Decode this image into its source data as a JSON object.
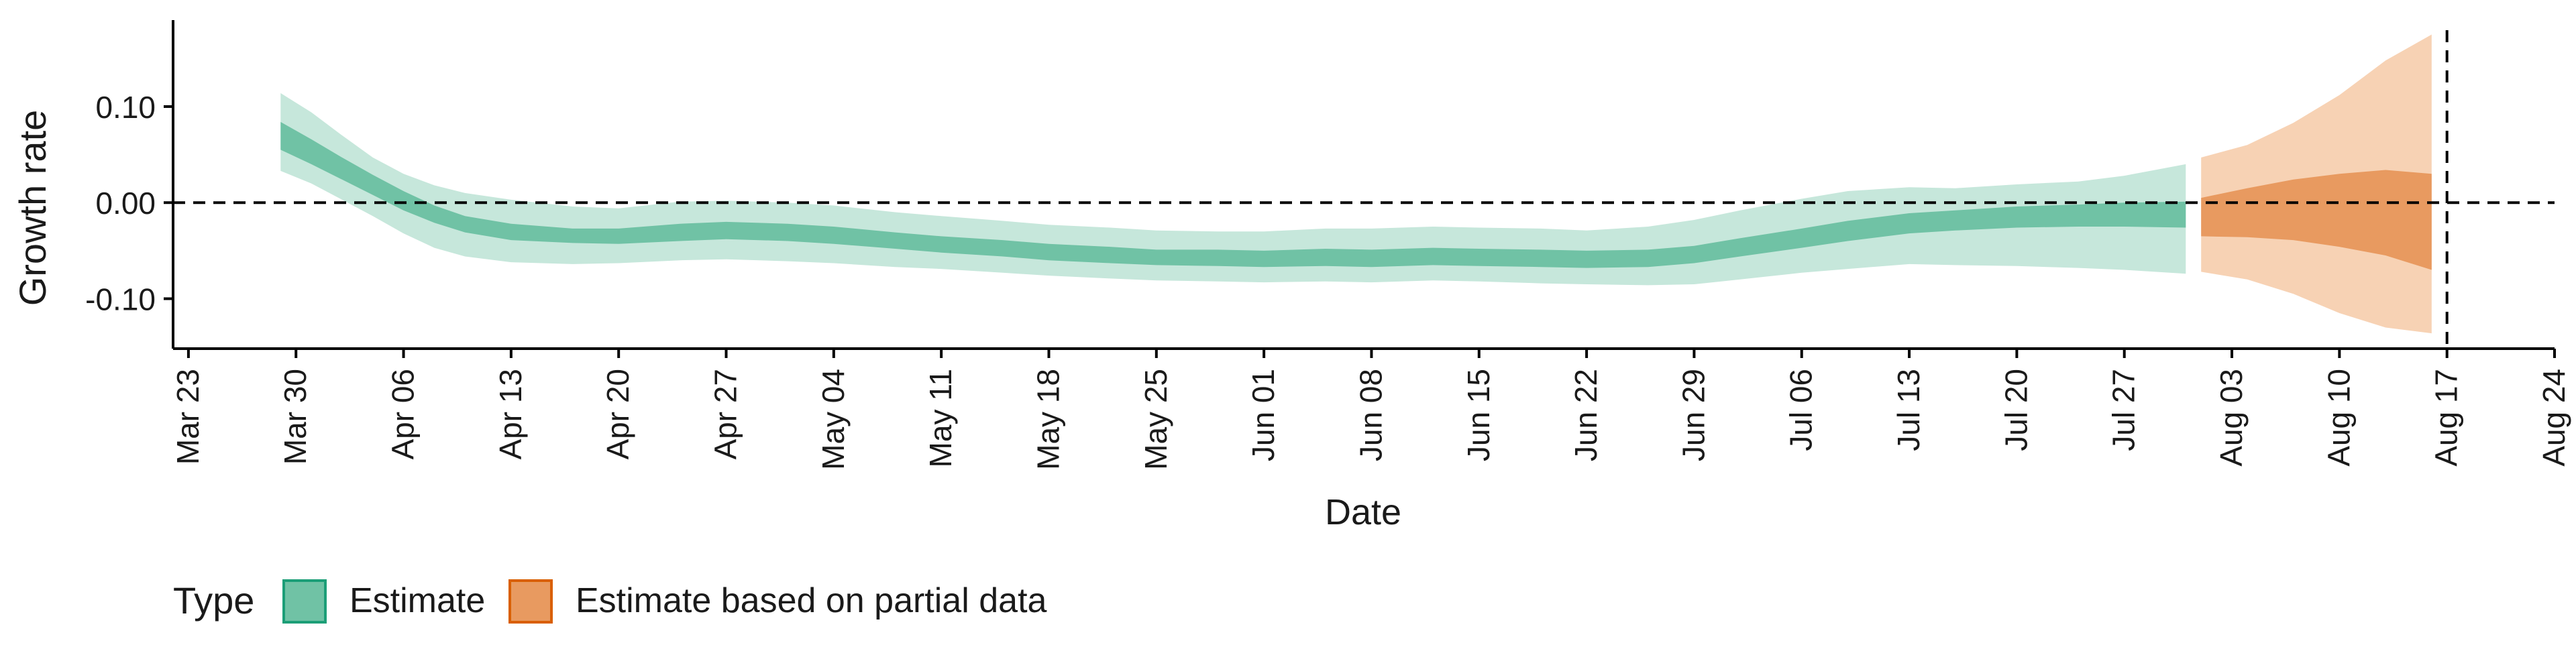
{
  "chart_data": {
    "type": "area",
    "title": "",
    "xlabel": "Date",
    "ylabel": "Growth rate",
    "x_ticks": [
      "Mar 23",
      "Mar 30",
      "Apr 06",
      "Apr 13",
      "Apr 20",
      "Apr 27",
      "May 04",
      "May 11",
      "May 18",
      "May 25",
      "Jun 01",
      "Jun 08",
      "Jun 15",
      "Jun 22",
      "Jun 29",
      "Jul 06",
      "Jul 13",
      "Jul 20",
      "Jul 27",
      "Aug 03",
      "Aug 10",
      "Aug 17",
      "Aug 24"
    ],
    "y_ticks": [
      "0.10",
      "0.00",
      "-0.10"
    ],
    "y_tick_values": [
      0.1,
      0.0,
      -0.1
    ],
    "ylim": [
      -0.152,
      0.19
    ],
    "xlim": [
      "2020-03-22",
      "2020-08-24"
    ],
    "reference_lines": {
      "horizontal_y": 0.0,
      "vertical_date": "2020-08-17"
    },
    "legend": {
      "title": "Type",
      "position": "bottom-left",
      "entries": [
        {
          "label": "Estimate",
          "fill": "#70c2a5",
          "stroke": "#1b9e77"
        },
        {
          "label": "Estimate based on partial data",
          "fill": "#e89a60",
          "stroke": "#d95f02"
        }
      ]
    },
    "series": [
      {
        "name": "Estimate",
        "color_inner": "#70c2a5",
        "color_outer": "#c6e7db",
        "points": [
          [
            "2020-03-29",
            0.07,
            0.055,
            0.084,
            0.033,
            0.114
          ],
          [
            "2020-03-31",
            0.054,
            0.04,
            0.066,
            0.02,
            0.094
          ],
          [
            "2020-04-02",
            0.036,
            0.024,
            0.047,
            0.003,
            0.07
          ],
          [
            "2020-04-04",
            0.018,
            0.008,
            0.029,
            -0.014,
            0.047
          ],
          [
            "2020-04-06",
            0.002,
            -0.008,
            0.012,
            -0.032,
            0.03
          ],
          [
            "2020-04-08",
            -0.012,
            -0.021,
            -0.003,
            -0.047,
            0.018
          ],
          [
            "2020-04-10",
            -0.023,
            -0.031,
            -0.014,
            -0.056,
            0.01
          ],
          [
            "2020-04-13",
            -0.031,
            -0.039,
            -0.022,
            -0.062,
            0.003
          ],
          [
            "2020-04-17",
            -0.035,
            -0.042,
            -0.027,
            -0.064,
            -0.004
          ],
          [
            "2020-04-20",
            -0.035,
            -0.043,
            -0.027,
            -0.063,
            -0.006
          ],
          [
            "2020-04-24",
            -0.031,
            -0.04,
            -0.022,
            -0.06,
            0.001
          ],
          [
            "2020-04-27",
            -0.029,
            -0.038,
            -0.02,
            -0.059,
            0.002
          ],
          [
            "2020-05-01",
            -0.031,
            -0.04,
            -0.022,
            -0.061,
            0.0
          ],
          [
            "2020-05-04",
            -0.034,
            -0.043,
            -0.025,
            -0.063,
            -0.003
          ],
          [
            "2020-05-08",
            -0.04,
            -0.048,
            -0.031,
            -0.067,
            -0.01
          ],
          [
            "2020-05-11",
            -0.043,
            -0.052,
            -0.035,
            -0.069,
            -0.014
          ],
          [
            "2020-05-15",
            -0.047,
            -0.056,
            -0.039,
            -0.073,
            -0.019
          ],
          [
            "2020-05-18",
            -0.051,
            -0.06,
            -0.043,
            -0.076,
            -0.023
          ],
          [
            "2020-05-22",
            -0.054,
            -0.063,
            -0.046,
            -0.079,
            -0.026
          ],
          [
            "2020-05-25",
            -0.057,
            -0.065,
            -0.049,
            -0.081,
            -0.029
          ],
          [
            "2020-05-29",
            -0.058,
            -0.066,
            -0.049,
            -0.082,
            -0.03
          ],
          [
            "2020-06-01",
            -0.059,
            -0.067,
            -0.05,
            -0.083,
            -0.03
          ],
          [
            "2020-06-05",
            -0.057,
            -0.066,
            -0.048,
            -0.082,
            -0.027
          ],
          [
            "2020-06-08",
            -0.058,
            -0.067,
            -0.049,
            -0.083,
            -0.027
          ],
          [
            "2020-06-12",
            -0.056,
            -0.065,
            -0.047,
            -0.081,
            -0.025
          ],
          [
            "2020-06-15",
            -0.057,
            -0.066,
            -0.048,
            -0.082,
            -0.026
          ],
          [
            "2020-06-19",
            -0.058,
            -0.067,
            -0.049,
            -0.084,
            -0.027
          ],
          [
            "2020-06-22",
            -0.059,
            -0.068,
            -0.05,
            -0.085,
            -0.029
          ],
          [
            "2020-06-26",
            -0.058,
            -0.067,
            -0.049,
            -0.086,
            -0.025
          ],
          [
            "2020-06-29",
            -0.054,
            -0.063,
            -0.045,
            -0.085,
            -0.018
          ],
          [
            "2020-07-02",
            -0.047,
            -0.056,
            -0.037,
            -0.08,
            -0.008
          ],
          [
            "2020-07-06",
            -0.037,
            -0.047,
            -0.027,
            -0.073,
            0.004
          ],
          [
            "2020-07-09",
            -0.03,
            -0.04,
            -0.019,
            -0.069,
            0.012
          ],
          [
            "2020-07-13",
            -0.022,
            -0.032,
            -0.011,
            -0.064,
            0.016
          ],
          [
            "2020-07-16",
            -0.018,
            -0.029,
            -0.008,
            -0.065,
            0.015
          ],
          [
            "2020-07-20",
            -0.014,
            -0.026,
            -0.004,
            -0.066,
            0.019
          ],
          [
            "2020-07-24",
            -0.013,
            -0.025,
            -0.002,
            -0.068,
            0.022
          ],
          [
            "2020-07-27",
            -0.012,
            -0.025,
            0.0,
            -0.07,
            0.028
          ],
          [
            "2020-07-31",
            -0.012,
            -0.026,
            0.001,
            -0.074,
            0.04
          ]
        ]
      },
      {
        "name": "Estimate based on partial data",
        "color_inner": "#e89a60",
        "color_outer": "#f7d2b4",
        "points": [
          [
            "2020-08-01",
            -0.01,
            -0.035,
            0.005,
            -0.072,
            0.047
          ],
          [
            "2020-08-04",
            -0.008,
            -0.036,
            0.015,
            -0.08,
            0.06
          ],
          [
            "2020-08-07",
            -0.005,
            -0.039,
            0.024,
            -0.095,
            0.083
          ],
          [
            "2020-08-10",
            -0.008,
            -0.046,
            0.03,
            -0.115,
            0.112
          ],
          [
            "2020-08-13",
            -0.012,
            -0.055,
            0.034,
            -0.13,
            0.148
          ],
          [
            "2020-08-16",
            -0.018,
            -0.07,
            0.03,
            -0.136,
            0.175
          ]
        ]
      }
    ]
  }
}
